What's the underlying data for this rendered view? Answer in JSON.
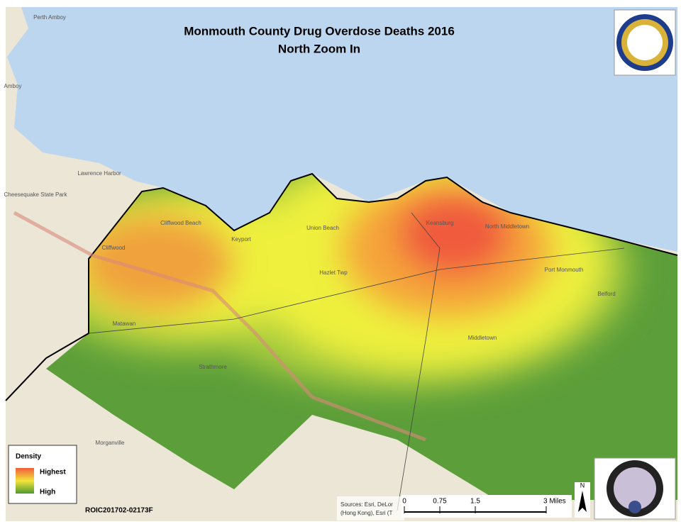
{
  "title": "Monmouth County Drug Overdose Deaths 2016",
  "subtitle": "North Zoom In",
  "legend": {
    "title": "Density",
    "high_label": "Highest",
    "low_label": "High"
  },
  "map_id": "ROIC201702-02173F",
  "sources": [
    "Sources: Esri, DeLor",
    "(Hong Kong), Esri (T"
  ],
  "scale_bar": {
    "ticks": [
      0,
      0.75,
      1.5,
      {
        "value": 3,
        "label": "3 Miles"
      }
    ]
  },
  "north": "N",
  "places": [
    "Perth Amboy",
    "Amboy",
    "Lawrence Harbor",
    "Cheesequake State Park",
    "Cliffwood Beach",
    "Cliffwood",
    "Keyport",
    "Union Beach",
    "Keansburg",
    "North Middletown",
    "Hazlet Twp",
    "Port Monmouth",
    "Belford",
    "Matawan",
    "Middletown",
    "Strathmore",
    "Morganville"
  ]
}
